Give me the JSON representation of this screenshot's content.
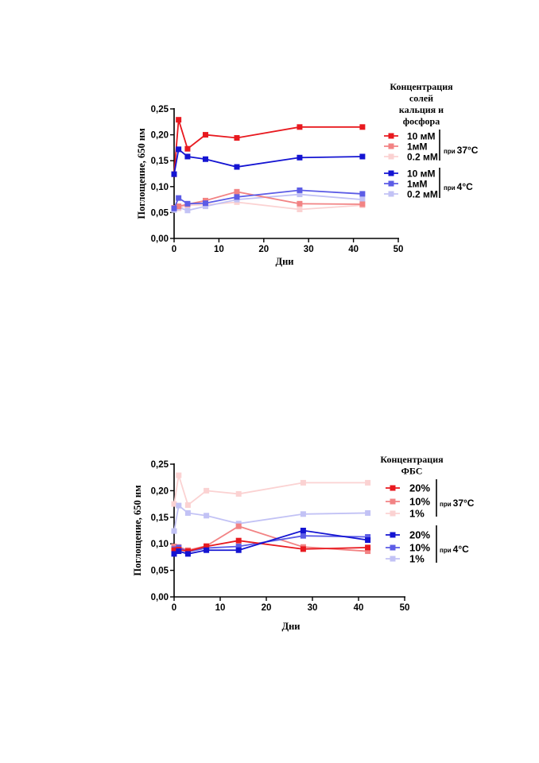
{
  "chart_data": [
    {
      "type": "line",
      "xlabel": "Дни",
      "ylabel": "Поглощение, 650 нм",
      "xlim": [
        0,
        50
      ],
      "ylim": [
        0,
        0.25
      ],
      "x_ticks": [
        "0",
        "10",
        "20",
        "30",
        "40",
        "50"
      ],
      "y_ticks": [
        "0,00",
        "0,05",
        "0,10",
        "0,15",
        "0,20",
        "0,25"
      ],
      "grid": false,
      "legend_title": [
        "Концентрация",
        "солей",
        "кальция и",
        "фосфора"
      ],
      "legend_position": "right",
      "groups": [
        {
          "prefix": "при",
          "label": "37°C"
        },
        {
          "prefix": "при",
          "label": "4°C"
        }
      ],
      "x": [
        0,
        1,
        3,
        7,
        14,
        28,
        42
      ],
      "series": [
        {
          "name": "10 мМ",
          "group": 0,
          "color": "#e8191f",
          "values": [
            0.124,
            0.229,
            0.173,
            0.2,
            0.194,
            0.215,
            0.215
          ]
        },
        {
          "name": "1мМ",
          "group": 0,
          "color": "#f28384",
          "values": [
            0.059,
            0.062,
            0.066,
            0.073,
            0.09,
            0.067,
            0.066
          ]
        },
        {
          "name": "0.2 мМ",
          "group": 0,
          "color": "#fbd2d2",
          "values": [
            0.055,
            0.058,
            0.064,
            0.065,
            0.07,
            0.056,
            0.064
          ]
        },
        {
          "name": "10 мМ",
          "group": 1,
          "color": "#1414d2",
          "values": [
            0.124,
            0.172,
            0.158,
            0.153,
            0.138,
            0.156,
            0.158
          ]
        },
        {
          "name": "1мМ",
          "group": 1,
          "color": "#5c5ce6",
          "values": [
            0.058,
            0.078,
            0.067,
            0.068,
            0.08,
            0.093,
            0.086
          ]
        },
        {
          "name": "0.2 мМ",
          "group": 1,
          "color": "#c2c2f5",
          "values": [
            0.055,
            0.06,
            0.054,
            0.062,
            0.075,
            0.085,
            0.075
          ]
        }
      ]
    },
    {
      "type": "line",
      "xlabel": "Дни",
      "ylabel": "Поглощение, 650 нм",
      "xlim": [
        0,
        50
      ],
      "ylim": [
        0,
        0.25
      ],
      "x_ticks": [
        "0",
        "10",
        "20",
        "30",
        "40",
        "50"
      ],
      "y_ticks": [
        "0,00",
        "0,05",
        "0,10",
        "0,15",
        "0,20",
        "0,25"
      ],
      "grid": false,
      "legend_title": [
        "Концентрация",
        "ФБС"
      ],
      "legend_position": "right",
      "groups": [
        {
          "prefix": "при",
          "label": "37°C"
        },
        {
          "prefix": "при",
          "label": "4°C"
        }
      ],
      "x": [
        0,
        1,
        3,
        7,
        14,
        28,
        42
      ],
      "series": [
        {
          "name": "20%",
          "group": 0,
          "color": "#e8191f",
          "values": [
            0.088,
            0.089,
            0.086,
            0.095,
            0.106,
            0.09,
            0.093
          ]
        },
        {
          "name": "10%",
          "group": 0,
          "color": "#f28384",
          "values": [
            0.095,
            0.094,
            0.088,
            0.096,
            0.133,
            0.094,
            0.086
          ]
        },
        {
          "name": "1%",
          "group": 0,
          "color": "#fbd2d2",
          "values": [
            0.175,
            0.229,
            0.173,
            0.2,
            0.194,
            0.215,
            0.215
          ]
        },
        {
          "name": "20%",
          "group": 1,
          "color": "#1414d2",
          "values": [
            0.081,
            0.086,
            0.081,
            0.088,
            0.088,
            0.125,
            0.107
          ]
        },
        {
          "name": "10%",
          "group": 1,
          "color": "#5c5ce6",
          "values": [
            0.09,
            0.093,
            0.085,
            0.092,
            0.095,
            0.115,
            0.113
          ]
        },
        {
          "name": "1%",
          "group": 1,
          "color": "#c2c2f5",
          "values": [
            0.124,
            0.172,
            0.158,
            0.153,
            0.138,
            0.156,
            0.158
          ]
        }
      ]
    }
  ]
}
